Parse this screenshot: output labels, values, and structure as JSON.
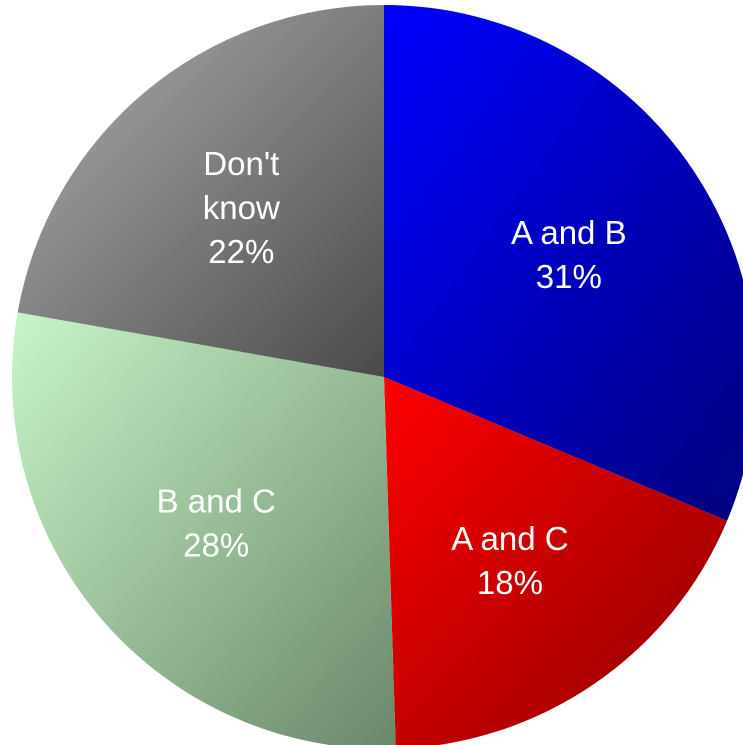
{
  "chart_data": {
    "type": "pie",
    "title": "",
    "slices": [
      {
        "label_lines": [
          "A and B",
          "31%"
        ],
        "value": 31,
        "colors": [
          "#0000ff",
          "#00007a"
        ]
      },
      {
        "label_lines": [
          "A and C",
          "18%"
        ],
        "value": 18,
        "colors": [
          "#ff0000",
          "#8b0000"
        ]
      },
      {
        "label_lines": [
          "B and C",
          "28%"
        ],
        "value": 28,
        "colors": [
          "#c9f5c9",
          "#6a876a"
        ]
      },
      {
        "label_lines": [
          "Don't",
          "know",
          "22%"
        ],
        "value": 22,
        "colors": [
          "#b0b0b0",
          "#4a4a4a"
        ]
      }
    ],
    "start_direction": "top",
    "direction": "clockwise",
    "legend": "none"
  }
}
